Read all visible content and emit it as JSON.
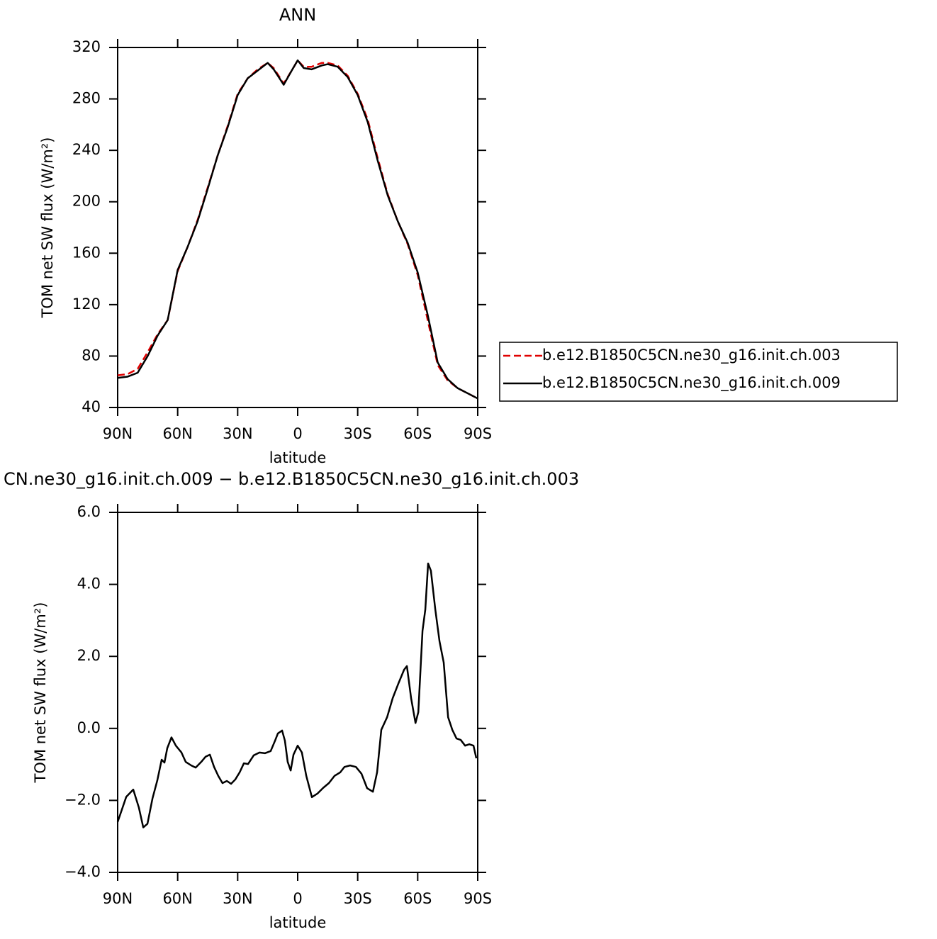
{
  "chart_data": [
    {
      "type": "line",
      "title": "ANN",
      "xlabel": "latitude",
      "ylabel": "TOM net SW flux (W/m²)",
      "xlim": [
        90,
        -90
      ],
      "ylim": [
        40,
        320
      ],
      "xticks": [
        {
          "value": 90,
          "label": "90N"
        },
        {
          "value": 60,
          "label": "60N"
        },
        {
          "value": 30,
          "label": "30N"
        },
        0,
        {
          "value": -30,
          "label": "30S"
        },
        {
          "value": -60,
          "label": "60S"
        },
        {
          "value": -90,
          "label": "90S"
        }
      ],
      "yticks": [
        40,
        80,
        120,
        160,
        200,
        240,
        280,
        320
      ],
      "legend": "right",
      "x": [
        90,
        85,
        80,
        75,
        70,
        65,
        60,
        55,
        50,
        45,
        40,
        35,
        30,
        25,
        20,
        15,
        12,
        7,
        3,
        0,
        -3,
        -7,
        -12,
        -15,
        -20,
        -25,
        -30,
        -35,
        -40,
        -45,
        -50,
        -55,
        -60,
        -65,
        -70,
        -75,
        -80,
        -85,
        -90
      ],
      "series": [
        {
          "name": "b.e12.B1850C5CN.ne30_g16.init.ch.003",
          "color": "#e00000",
          "dash": true,
          "values": [
            65,
            66,
            70,
            83,
            97,
            108,
            146,
            165,
            186,
            211,
            236,
            259,
            284,
            296,
            303,
            308,
            304,
            292,
            302,
            310,
            305,
            305,
            308,
            308,
            306,
            298,
            284,
            264,
            234,
            206,
            185,
            167,
            143,
            108,
            73,
            61,
            55,
            51,
            47
          ]
        },
        {
          "name": "b.e12.B1850C5CN.ne30_g16.init.ch.009",
          "color": "#000000",
          "dash": false,
          "values": [
            63,
            64,
            67,
            80,
            96,
            108,
            147,
            165,
            185,
            210,
            236,
            258,
            283,
            296,
            302,
            308,
            303,
            291,
            302,
            310,
            304,
            303,
            306,
            307,
            305,
            297,
            283,
            262,
            232,
            205,
            185,
            168,
            145,
            112,
            75,
            62,
            55,
            51,
            47
          ]
        }
      ]
    },
    {
      "type": "line",
      "title": "CN.ne30_g16.init.ch.009 − b.e12.B1850C5CN.ne30_g16.init.ch.003",
      "xlabel": "latitude",
      "ylabel": "TOM net SW flux (W/m²)",
      "xlim": [
        90,
        -90
      ],
      "ylim": [
        -4,
        6
      ],
      "xticks": [
        {
          "value": 90,
          "label": "90N"
        },
        {
          "value": 60,
          "label": "60N"
        },
        {
          "value": 30,
          "label": "30N"
        },
        0,
        {
          "value": -30,
          "label": "30S"
        },
        {
          "value": -60,
          "label": "60S"
        },
        {
          "value": -90,
          "label": "90S"
        }
      ],
      "yticks": [
        {
          "value": -4,
          "label": "−4.0"
        },
        {
          "value": -2,
          "label": "−2.0"
        },
        {
          "value": 0,
          "label": "0.0"
        },
        {
          "value": 2,
          "label": "2.0"
        },
        {
          "value": 4,
          "label": "4.0"
        },
        {
          "value": 6,
          "label": "6.0"
        }
      ],
      "color": "#000000",
      "x": [
        90,
        85.7,
        82.2,
        79.4,
        77.2,
        75.1,
        72.6,
        70.2,
        68,
        66.6,
        65.2,
        63.1,
        60.9,
        58.1,
        56,
        53.2,
        51,
        48.2,
        46.1,
        43.9,
        41.8,
        39.7,
        37.6,
        35.4,
        33.3,
        31.2,
        29,
        26.9,
        24.8,
        22,
        19.1,
        16.3,
        13.5,
        11.3,
        9.9,
        7.8,
        6.4,
        5,
        3.5,
        2.1,
        0,
        -2.1,
        -4.3,
        -7.1,
        -9.9,
        -12.8,
        -15.6,
        -18.4,
        -21.3,
        -23.4,
        -26.2,
        -29.1,
        -31.9,
        -34.7,
        -37.6,
        -39.7,
        -41.8,
        -44.7,
        -47.5,
        -50.3,
        -53.2,
        -54.6,
        -56.7,
        -58.9,
        -60.3,
        -62.4,
        -63.8,
        -65.2,
        -66.6,
        -68.8,
        -70.9,
        -73,
        -75.2,
        -77.3,
        -79.4,
        -81.5,
        -83.7,
        -85.8,
        -87.9,
        -89.3
      ],
      "values": [
        -2.6,
        -1.9,
        -1.7,
        -2.2,
        -2.75,
        -2.65,
        -1.95,
        -1.45,
        -0.87,
        -0.95,
        -0.55,
        -0.25,
        -0.48,
        -0.67,
        -0.93,
        -1.03,
        -1.09,
        -0.93,
        -0.79,
        -0.73,
        -1.07,
        -1.32,
        -1.52,
        -1.46,
        -1.54,
        -1.42,
        -1.22,
        -0.97,
        -0.99,
        -0.75,
        -0.67,
        -0.69,
        -0.63,
        -0.34,
        -0.14,
        -0.06,
        -0.34,
        -0.93,
        -1.17,
        -0.73,
        -0.48,
        -0.67,
        -1.32,
        -1.91,
        -1.81,
        -1.65,
        -1.52,
        -1.32,
        -1.22,
        -1.07,
        -1.03,
        -1.07,
        -1.26,
        -1.66,
        -1.76,
        -1.22,
        -0.04,
        0.31,
        0.84,
        1.24,
        1.63,
        1.73,
        0.84,
        0.15,
        0.45,
        2.71,
        3.3,
        4.58,
        4.38,
        3.3,
        2.42,
        1.83,
        0.31,
        -0.04,
        -0.28,
        -0.32,
        -0.48,
        -0.44,
        -0.48,
        -0.83
      ]
    }
  ]
}
